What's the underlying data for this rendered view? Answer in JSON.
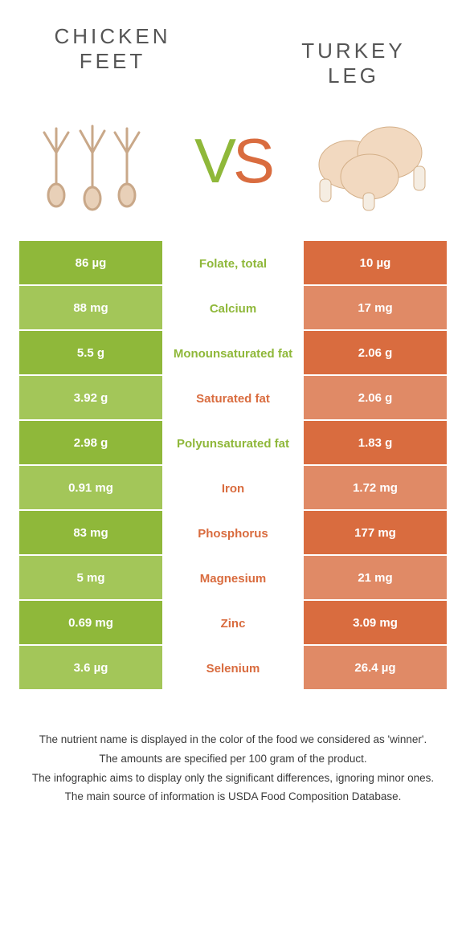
{
  "header": {
    "left_title_line1": "CHICKEN",
    "left_title_line2": "FEET",
    "right_title": "TURKEY LEG",
    "vs_v": "V",
    "vs_s": "S"
  },
  "colors": {
    "green_main": "#8fb83a",
    "green_alt": "#a3c659",
    "orange_main": "#d96c3f",
    "orange_alt": "#e08a66",
    "text_dark": "#4a4a4a",
    "white": "#ffffff"
  },
  "rows": [
    {
      "left": "86 µg",
      "mid": "Folate, total",
      "right": "10 µg",
      "winner": "left",
      "alt": false
    },
    {
      "left": "88 mg",
      "mid": "Calcium",
      "right": "17 mg",
      "winner": "left",
      "alt": true
    },
    {
      "left": "5.5 g",
      "mid": "Monounsaturated fat",
      "right": "2.06 g",
      "winner": "left",
      "alt": false
    },
    {
      "left": "3.92 g",
      "mid": "Saturated fat",
      "right": "2.06 g",
      "winner": "right",
      "alt": true
    },
    {
      "left": "2.98 g",
      "mid": "Polyunsaturated fat",
      "right": "1.83 g",
      "winner": "left",
      "alt": false
    },
    {
      "left": "0.91 mg",
      "mid": "Iron",
      "right": "1.72 mg",
      "winner": "right",
      "alt": true
    },
    {
      "left": "83 mg",
      "mid": "Phosphorus",
      "right": "177 mg",
      "winner": "right",
      "alt": false
    },
    {
      "left": "5 mg",
      "mid": "Magnesium",
      "right": "21 mg",
      "winner": "right",
      "alt": true
    },
    {
      "left": "0.69 mg",
      "mid": "Zinc",
      "right": "3.09 mg",
      "winner": "right",
      "alt": false
    },
    {
      "left": "3.6 µg",
      "mid": "Selenium",
      "right": "26.4 µg",
      "winner": "right",
      "alt": true
    }
  ],
  "footnotes": [
    "The nutrient name is displayed in the color of the food we considered as 'winner'.",
    "The amounts are specified per 100 gram of the product.",
    "The infographic aims to display only the significant differences, ignoring minor ones.",
    "The main source of information is USDA Food Composition Database."
  ]
}
